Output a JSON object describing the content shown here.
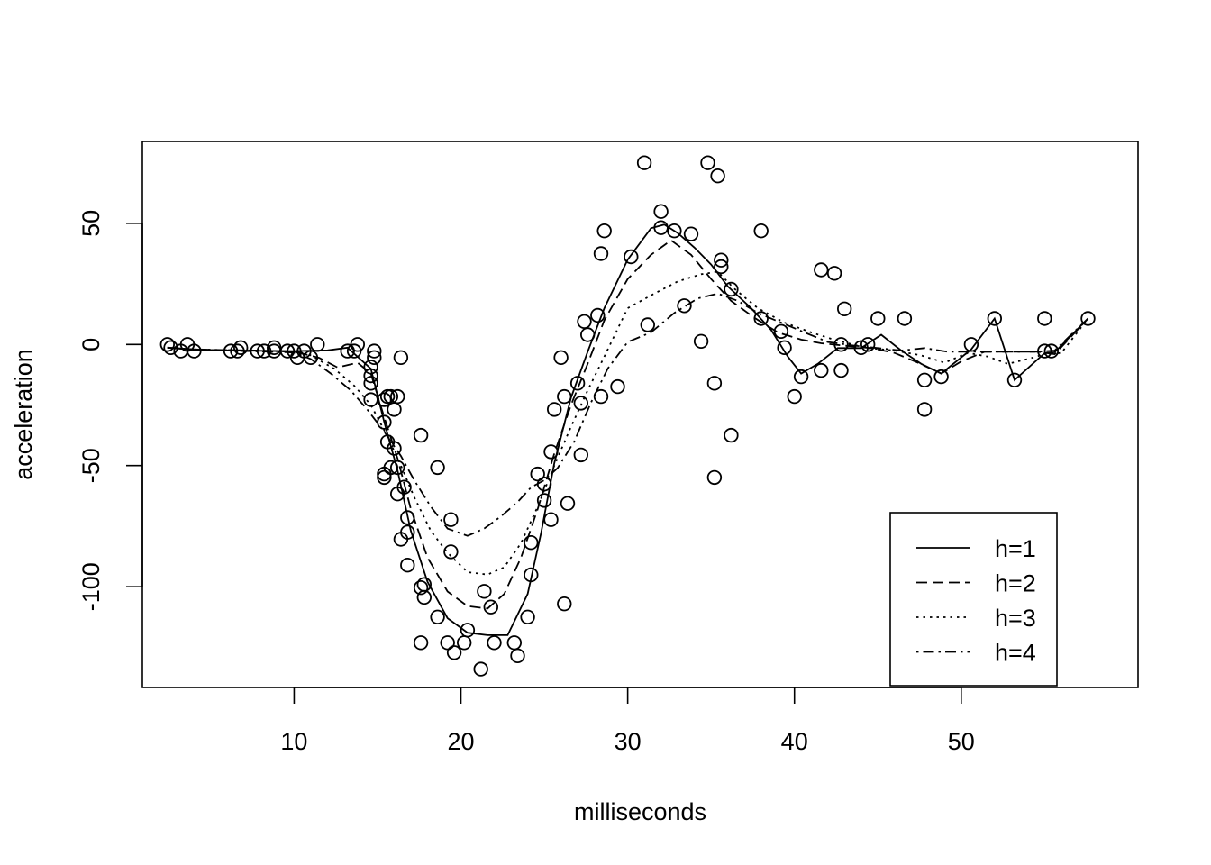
{
  "chart_data": {
    "type": "scatter",
    "title": "",
    "xlabel": "milliseconds",
    "ylabel": "acceleration",
    "xlim": [
      0.9,
      60.6
    ],
    "ylim": [
      -141.6,
      83.8
    ],
    "xticks": [
      10,
      20,
      30,
      40,
      50
    ],
    "yticks": [
      -100,
      -50,
      0,
      50
    ],
    "grid": false,
    "legend": {
      "placement": "bottom-right",
      "entries": [
        {
          "label": "h=1",
          "dash": "solid"
        },
        {
          "label": "h=2",
          "dash": "dashed"
        },
        {
          "label": "h=3",
          "dash": "dotted"
        },
        {
          "label": "h=4",
          "dash": "dotdash"
        }
      ]
    },
    "points": {
      "x": [
        2.4,
        2.6,
        3.2,
        3.6,
        4.0,
        6.2,
        6.6,
        6.8,
        7.8,
        8.2,
        8.8,
        8.8,
        9.6,
        10.0,
        10.2,
        10.6,
        11.0,
        11.4,
        13.2,
        13.6,
        13.8,
        14.6,
        14.6,
        14.6,
        14.6,
        14.8,
        14.8,
        15.4,
        15.4,
        15.4,
        15.4,
        15.6,
        15.6,
        15.8,
        15.8,
        16.0,
        16.0,
        16.2,
        16.2,
        16.2,
        16.4,
        16.4,
        16.6,
        16.8,
        16.8,
        16.8,
        17.6,
        17.6,
        17.6,
        17.8,
        17.8,
        18.6,
        18.6,
        19.2,
        19.4,
        19.4,
        19.6,
        20.2,
        20.4,
        21.2,
        21.4,
        21.8,
        22.0,
        23.2,
        23.4,
        24.0,
        24.2,
        24.2,
        24.6,
        25.0,
        25.0,
        25.4,
        25.4,
        25.6,
        26.0,
        26.2,
        26.2,
        26.4,
        27.0,
        27.2,
        27.2,
        27.4,
        27.6,
        28.2,
        28.4,
        28.4,
        28.6,
        29.4,
        30.2,
        31.0,
        31.2,
        32.0,
        32.0,
        32.8,
        33.4,
        33.8,
        34.4,
        34.8,
        35.2,
        35.2,
        35.4,
        35.6,
        35.6,
        36.2,
        36.2,
        38.0,
        38.0,
        39.2,
        39.4,
        40.0,
        40.4,
        41.6,
        41.6,
        42.4,
        42.8,
        42.8,
        43.0,
        44.0,
        44.4,
        45.0,
        46.6,
        47.8,
        47.8,
        48.8,
        50.6,
        52.0,
        53.2,
        55.0,
        55.0,
        55.4,
        57.6
      ],
      "y": [
        0.0,
        -1.3,
        -2.7,
        0.0,
        -2.7,
        -2.7,
        -2.7,
        -1.3,
        -2.7,
        -2.7,
        -1.3,
        -2.7,
        -2.7,
        -2.7,
        -5.4,
        -2.7,
        -5.4,
        0.0,
        -2.7,
        -2.7,
        0.0,
        -16.0,
        -22.8,
        -12.9,
        -9.3,
        -5.4,
        -2.7,
        -32.1,
        -53.5,
        -54.9,
        -22.8,
        -40.2,
        -21.5,
        -50.8,
        -21.5,
        -42.9,
        -26.8,
        -61.7,
        -21.5,
        -50.8,
        -80.4,
        -5.4,
        -58.9,
        -91.1,
        -71.5,
        -77.5,
        -100.4,
        -123.1,
        -37.5,
        -104.4,
        -99.1,
        -112.5,
        -50.8,
        -123.1,
        -72.3,
        -85.6,
        -127.2,
        -123.1,
        -117.9,
        -134.0,
        -101.9,
        -108.4,
        -123.1,
        -123.1,
        -128.5,
        -112.5,
        -95.1,
        -81.8,
        -53.5,
        -64.4,
        -57.6,
        -72.3,
        -44.3,
        -26.8,
        -5.4,
        -107.1,
        -21.5,
        -65.6,
        -16.0,
        -45.6,
        -24.2,
        9.5,
        4.0,
        12.0,
        -21.5,
        37.5,
        46.9,
        -17.4,
        36.2,
        75.0,
        8.1,
        54.9,
        48.2,
        46.9,
        16.0,
        45.6,
        1.3,
        75.0,
        -16.0,
        -54.9,
        69.6,
        34.8,
        32.1,
        -37.5,
        22.8,
        46.9,
        10.7,
        5.4,
        -1.3,
        -21.5,
        -13.3,
        30.8,
        -10.7,
        29.4,
        0.0,
        -10.7,
        14.7,
        -1.3,
        0.0,
        10.7,
        10.7,
        -26.8,
        -14.7,
        -13.3,
        0.0,
        10.7,
        -14.7,
        -2.7,
        10.7,
        -2.7,
        10.7
      ]
    },
    "series": [
      {
        "label": "h=1",
        "x": [
          2.4,
          4,
          6,
          8,
          10,
          12,
          13.2,
          14.6,
          15.4,
          16.2,
          17,
          18,
          19.2,
          20.4,
          21.6,
          22.8,
          24,
          24.8,
          25.6,
          26.6,
          27.6,
          28.6,
          30,
          31.4,
          32.2,
          33,
          34,
          35,
          36,
          37.4,
          38.6,
          39.6,
          40.4,
          41.4,
          42.6,
          44,
          45.2,
          46.4,
          47.6,
          48.8,
          50.6,
          52,
          53.2,
          55,
          55.6,
          57.6
        ],
        "y": [
          -1.3,
          -2.2,
          -2.4,
          -2.6,
          -2.7,
          -2.4,
          -1.3,
          -10,
          -32,
          -52,
          -77,
          -98,
          -113,
          -119,
          -120,
          -120,
          -103,
          -78,
          -49,
          -22,
          -3,
          15,
          35,
          48,
          49.5,
          46,
          40,
          33,
          24,
          15,
          6,
          -5,
          -12,
          -8,
          -1.5,
          -1.5,
          4,
          -2.5,
          -8,
          -12,
          -2,
          10.7,
          -14.7,
          -3.6,
          -3.2,
          10.7
        ]
      },
      {
        "label": "h=2",
        "x": [
          2.4,
          4,
          6,
          8,
          10,
          11.5,
          12.6,
          13.8,
          14.6,
          15.4,
          16.2,
          17,
          18,
          19.2,
          20.4,
          21.6,
          22.6,
          23.6,
          24.6,
          25.6,
          26.6,
          27.6,
          28.6,
          30,
          31.4,
          32.6,
          33.8,
          35,
          36.2,
          37.6,
          39,
          40.4,
          41.6,
          43,
          44.6,
          46,
          47.4,
          48.8,
          50,
          51.4,
          53,
          54.6,
          55.6,
          57.6
        ],
        "y": [
          -1.3,
          -2,
          -2.3,
          -2.5,
          -2.9,
          -5.5,
          -9.5,
          -7.5,
          -12,
          -30,
          -47,
          -68,
          -88,
          -102,
          -108,
          -109,
          -103,
          -88,
          -68,
          -45,
          -25,
          -8,
          10,
          27,
          37,
          43,
          37,
          27,
          18,
          11,
          5,
          2,
          0.5,
          -0.5,
          -1.5,
          -3.5,
          -7.5,
          -12,
          -7,
          -3,
          -3,
          -3,
          -4,
          10.7
        ]
      },
      {
        "label": "h=3",
        "x": [
          2.4,
          4,
          6,
          8,
          10,
          11,
          12.4,
          13.6,
          14.6,
          15.6,
          16.4,
          17.2,
          18.2,
          19.2,
          20.4,
          21.6,
          22.6,
          23.6,
          24.6,
          25.6,
          26.6,
          27.6,
          28.6,
          30,
          31.6,
          33,
          34.4,
          35.4,
          36.4,
          37.8,
          39.4,
          41,
          42.6,
          44.4,
          46,
          47.6,
          49,
          50.4,
          51.6,
          52.8,
          54,
          55,
          56,
          57.6
        ],
        "y": [
          -1.3,
          -2,
          -2.3,
          -2.6,
          -3,
          -4.5,
          -10,
          -17,
          -25,
          -38,
          -50,
          -63,
          -77,
          -86,
          -94,
          -95,
          -92,
          -82,
          -67,
          -50,
          -34,
          -19,
          -5,
          15,
          21,
          26,
          29,
          30,
          23,
          15,
          9,
          5,
          1.5,
          -1.5,
          -2.5,
          -4.5,
          -7.5,
          -3.5,
          -5,
          -8,
          -6,
          -4,
          -3.5,
          10.7
        ]
      },
      {
        "label": "h=4",
        "x": [
          2.4,
          4,
          6,
          8,
          10,
          11,
          12.2,
          13.4,
          14.4,
          15.4,
          16.4,
          17.2,
          18.2,
          19.2,
          20.4,
          21.4,
          22.4,
          23.4,
          24.2,
          25,
          25.8,
          26.8,
          27.8,
          28.8,
          30,
          31.4,
          32.8,
          34.2,
          35.4,
          36.6,
          37.8,
          39.2,
          40.6,
          42,
          43.6,
          45,
          46.4,
          47.8,
          49.2,
          50.6,
          52,
          53.4,
          54.6,
          55.6,
          57.6
        ],
        "y": [
          -1.3,
          -2,
          -2.5,
          -2.9,
          -3.3,
          -6,
          -12,
          -19,
          -27,
          -36,
          -46,
          -56,
          -67,
          -76,
          -79,
          -76,
          -71,
          -65,
          -59,
          -56,
          -51,
          -40,
          -24,
          -10,
          1,
          5,
          13,
          19,
          21,
          18,
          13,
          9,
          5,
          1,
          -0.5,
          -1.5,
          -2.5,
          -1.5,
          -3,
          -3,
          -3,
          -3,
          -3,
          -2.5,
          10.7
        ]
      }
    ]
  }
}
